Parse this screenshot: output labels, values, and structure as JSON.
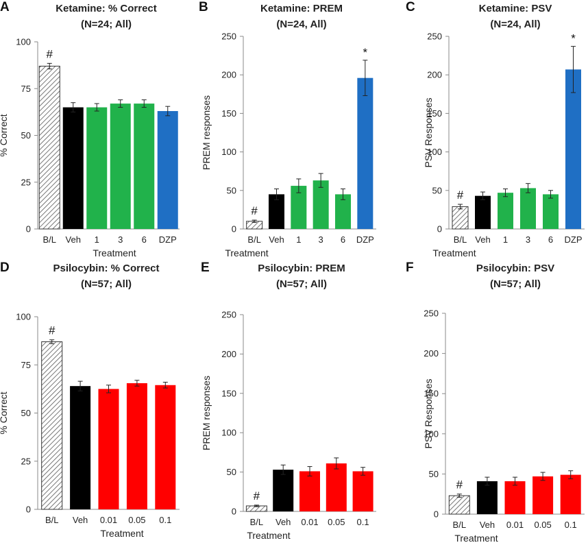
{
  "colors": {
    "baseline": "#ffffff",
    "vehicle": "#000000",
    "ketamine": "#21b24b",
    "diazepam": "#1f6fc4",
    "psilocybin": "#ff0000",
    "hatch": "#555555"
  },
  "chart_data": [
    {
      "id": "A",
      "type": "bar",
      "panel_label": "A",
      "title": [
        "Ketamine: % Correct",
        "(N=24; All)"
      ],
      "xlabel": "Treatment",
      "ylabel": "% Correct",
      "ylim": [
        0,
        100
      ],
      "yticks": [
        "0",
        "25",
        "50",
        "75",
        "100"
      ],
      "categories": [
        "B/L",
        "Veh",
        "1",
        "3",
        "6",
        "DZP"
      ],
      "values": [
        87,
        65,
        65,
        67,
        67,
        63
      ],
      "errors": [
        1.5,
        2.5,
        2,
        2,
        2,
        2.5
      ],
      "fills": [
        "baseline",
        "vehicle",
        "ketamine",
        "ketamine",
        "ketamine",
        "diazepam"
      ],
      "markers": [
        {
          "index": 0,
          "text": "#"
        }
      ]
    },
    {
      "id": "B",
      "type": "bar",
      "panel_label": "B",
      "title": [
        "Ketamine: PREM",
        "(N=24, All)"
      ],
      "xlabel": "Treatment",
      "ylabel": "PREM responses",
      "ylim": [
        0,
        250
      ],
      "yticks": [
        "0",
        "50",
        "100",
        "150",
        "200",
        "250"
      ],
      "categories": [
        "B/L",
        "Veh",
        "1",
        "3",
        "6",
        "DZP"
      ],
      "values": [
        10,
        45,
        56,
        63,
        45,
        196
      ],
      "errors": [
        1.5,
        7,
        9,
        9,
        7,
        23
      ],
      "fills": [
        "baseline",
        "vehicle",
        "ketamine",
        "ketamine",
        "ketamine",
        "diazepam"
      ],
      "markers": [
        {
          "index": 0,
          "text": "#"
        },
        {
          "index": 5,
          "text": "*"
        }
      ]
    },
    {
      "id": "C",
      "type": "bar",
      "panel_label": "C",
      "title": [
        "Ketamine: PSV",
        "(N=24, All)"
      ],
      "xlabel": "Treatment",
      "ylabel": "PSV Responses",
      "ylim": [
        0,
        250
      ],
      "yticks": [
        "0",
        "50",
        "100",
        "150",
        "200",
        "250"
      ],
      "categories": [
        "B/L",
        "Veh",
        "1",
        "3",
        "6",
        "DZP"
      ],
      "values": [
        29,
        43,
        47,
        53,
        45,
        207
      ],
      "errors": [
        3,
        5,
        5,
        6,
        5,
        30
      ],
      "fills": [
        "baseline",
        "vehicle",
        "ketamine",
        "ketamine",
        "ketamine",
        "diazepam"
      ],
      "markers": [
        {
          "index": 0,
          "text": "#"
        },
        {
          "index": 5,
          "text": "*"
        }
      ]
    },
    {
      "id": "D",
      "type": "bar",
      "panel_label": "D",
      "title": [
        "Psilocybin: % Correct",
        "(N=57; All)"
      ],
      "xlabel": "Treatment",
      "ylabel": "% Correct",
      "ylim": [
        0,
        100
      ],
      "yticks": [
        "0",
        "25",
        "50",
        "75",
        "100"
      ],
      "categories": [
        "B/L",
        "Veh",
        "0.01",
        "0.05",
        "0.1"
      ],
      "values": [
        87,
        64,
        62.5,
        65.5,
        64.5
      ],
      "errors": [
        1,
        2.5,
        2,
        1.5,
        1.5
      ],
      "fills": [
        "baseline",
        "vehicle",
        "psilocybin",
        "psilocybin",
        "psilocybin"
      ],
      "markers": [
        {
          "index": 0,
          "text": "#"
        }
      ]
    },
    {
      "id": "E",
      "type": "bar",
      "panel_label": "E",
      "title": [
        "Psilocybin: PREM",
        "(N=57; All)"
      ],
      "xlabel": "Treatment",
      "ylabel": "PREM responses",
      "ylim": [
        0,
        250
      ],
      "yticks": [
        "0",
        "50",
        "100",
        "150",
        "200",
        "250"
      ],
      "categories": [
        "B/L",
        "Veh",
        "0.01",
        "0.05",
        "0.1"
      ],
      "values": [
        7,
        53,
        51,
        61,
        51
      ],
      "errors": [
        1,
        6,
        6,
        7,
        5
      ],
      "fills": [
        "baseline",
        "vehicle",
        "psilocybin",
        "psilocybin",
        "psilocybin"
      ],
      "markers": [
        {
          "index": 0,
          "text": "#"
        }
      ]
    },
    {
      "id": "F",
      "type": "bar",
      "panel_label": "F",
      "title": [
        "Psilocybin: PSV",
        "(N=57; All)"
      ],
      "xlabel": "Treatment",
      "ylabel": "PSV Responses",
      "ylim": [
        0,
        250
      ],
      "yticks": [
        "0",
        "50",
        "100",
        "150",
        "200",
        "250"
      ],
      "categories": [
        "B/L",
        "Veh",
        "0.01",
        "0.05",
        "0.1"
      ],
      "values": [
        23,
        41,
        41,
        47,
        49
      ],
      "errors": [
        2,
        5,
        5,
        5,
        5
      ],
      "fills": [
        "baseline",
        "vehicle",
        "psilocybin",
        "psilocybin",
        "psilocybin"
      ],
      "markers": [
        {
          "index": 0,
          "text": "#"
        }
      ]
    }
  ]
}
